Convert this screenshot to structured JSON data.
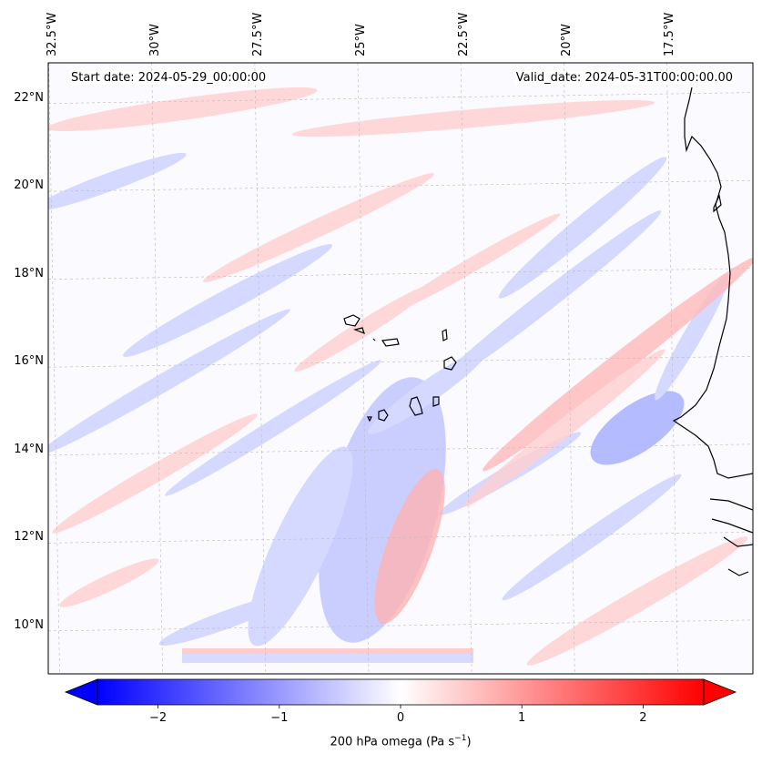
{
  "header": {
    "start_date": "Start date: 2024-05-29_00:00:00",
    "valid_date": "Valid_date: 2024-05-31T00:00:00.00"
  },
  "axes": {
    "lon_labels": [
      "32.5°W",
      "30°W",
      "27.5°W",
      "25°W",
      "22.5°W",
      "20°W",
      "17.5°W"
    ],
    "lat_labels": [
      "22°N",
      "20°N",
      "18°N",
      "16°N",
      "14°N",
      "12°N",
      "10°N"
    ],
    "lon_values": [
      -32.5,
      -30,
      -27.5,
      -25,
      -22.5,
      -20,
      -17.5
    ],
    "lat_values": [
      22,
      20,
      18,
      16,
      14,
      12,
      10
    ],
    "lon_range": [
      -32.6,
      -15.5
    ],
    "lat_range": [
      8.9,
      22.8
    ],
    "gridlines": true
  },
  "colorbar": {
    "label": "200 hPa omega (Pa s",
    "label_sup": "−1",
    "label_tail": ")",
    "ticks": [
      -2,
      -1,
      0,
      1,
      2
    ],
    "tick_labels": [
      "−2",
      "−1",
      "0",
      "1",
      "2"
    ],
    "range": [
      -2.5,
      2.5
    ],
    "extend": "both",
    "colormap": "bwr",
    "low_color": "#0000ff",
    "mid_color": "#ffffff",
    "high_color": "#ff0000"
  },
  "field": {
    "variable": "omega",
    "level": "200 hPa",
    "units": "Pa s-1"
  },
  "coastline_color": "#000000"
}
